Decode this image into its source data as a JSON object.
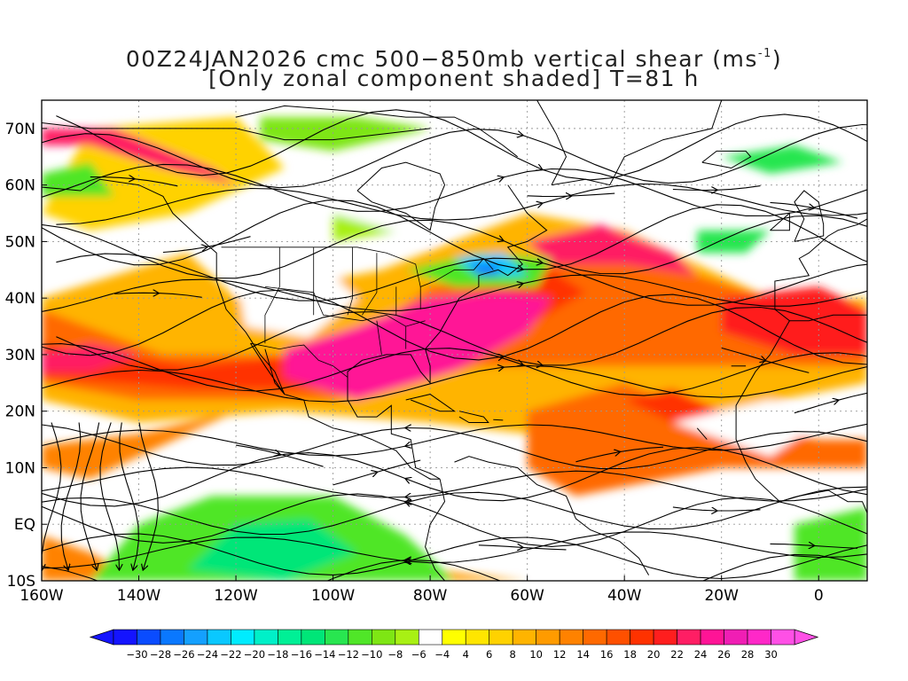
{
  "title": {
    "line1_prefix": "00Z24JAN2026 cmc 500−850mb vertical shear (ms",
    "line1_sup": "-1",
    "line1_suffix": ")",
    "line2": "[Only zonal component shaded] T=81 h"
  },
  "map": {
    "lon_range": [
      -160,
      10
    ],
    "lat_range": [
      -10,
      75
    ],
    "lat_labels": [
      {
        "lat": 70,
        "text": "70N"
      },
      {
        "lat": 60,
        "text": "60N"
      },
      {
        "lat": 50,
        "text": "50N"
      },
      {
        "lat": 40,
        "text": "40N"
      },
      {
        "lat": 30,
        "text": "30N"
      },
      {
        "lat": 20,
        "text": "20N"
      },
      {
        "lat": 10,
        "text": "10N"
      },
      {
        "lat": 0,
        "text": "EQ"
      },
      {
        "lat": -10,
        "text": "10S"
      }
    ],
    "lon_labels": [
      {
        "lon": -160,
        "text": "160W"
      },
      {
        "lon": -140,
        "text": "140W"
      },
      {
        "lon": -120,
        "text": "120W"
      },
      {
        "lon": -100,
        "text": "100W"
      },
      {
        "lon": -80,
        "text": "80W"
      },
      {
        "lon": -60,
        "text": "60W"
      },
      {
        "lon": -40,
        "text": "40W"
      },
      {
        "lon": -20,
        "text": "20W"
      },
      {
        "lon": 0,
        "text": "0"
      }
    ],
    "grid_lines": "dotted",
    "shading": "zonal component of 500-850mb vertical shear",
    "overlay": "shear streamlines with arrowheads",
    "coastlines": true
  },
  "colorbar": {
    "levels": [
      "-30",
      "-28",
      "-26",
      "-24",
      "-22",
      "-20",
      "-18",
      "-16",
      "-14",
      "-12",
      "-10",
      "-8",
      "-6",
      "-4",
      "4",
      "6",
      "8",
      "10",
      "12",
      "14",
      "16",
      "18",
      "20",
      "22",
      "24",
      "26",
      "28",
      "30"
    ],
    "colors": [
      "#1414ff",
      "#0a4cff",
      "#0a78ff",
      "#14a0ff",
      "#0ac8ff",
      "#00ecff",
      "#00f0c8",
      "#00f096",
      "#00e678",
      "#28e650",
      "#50e628",
      "#7ee614",
      "#a8f014",
      "#ffffff",
      "#ffff00",
      "#ffe600",
      "#ffd200",
      "#ffb400",
      "#ff9b00",
      "#ff8200",
      "#ff6900",
      "#ff5000",
      "#ff3200",
      "#ff1e1e",
      "#ff1e64",
      "#ff1496",
      "#f01eb4",
      "#ff28c8",
      "#ff50e6"
    ],
    "arrow_left_color": "#1414ff",
    "arrow_right_color": "#ff50e6"
  }
}
